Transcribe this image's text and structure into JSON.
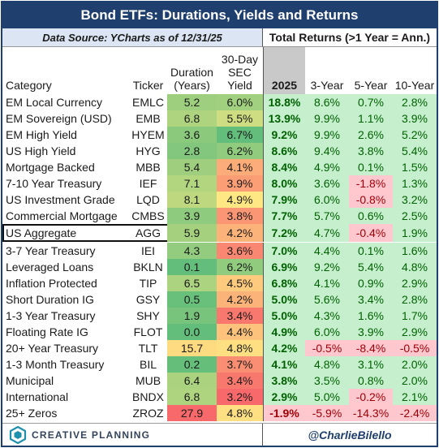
{
  "title": "Bond ETFs: Durations, Yields and Returns",
  "source_note": "Data Source: YCharts as of 12/31/25",
  "returns_header": "Total Returns (>1 Year = Ann.)",
  "columns": {
    "category": "Category",
    "ticker": "Ticker",
    "duration": "Duration (Years)",
    "yield": "30-Day SEC Yield",
    "r2025": "2025",
    "r3": "3-Year",
    "r5": "5-Year",
    "r10": "10-Year"
  },
  "rows": [
    {
      "category": "EM Local Currency",
      "ticker": "EMLC",
      "duration": "5.2",
      "yield": "6.0%",
      "r2025": "18.8%",
      "r3": "8.6%",
      "r5": "0.7%",
      "r10": "2.8%"
    },
    {
      "category": "EM Sovereign (USD)",
      "ticker": "EMB",
      "duration": "6.8",
      "yield": "5.5%",
      "r2025": "13.9%",
      "r3": "9.9%",
      "r5": "1.1%",
      "r10": "3.9%"
    },
    {
      "category": "EM High Yield",
      "ticker": "HYEM",
      "duration": "3.6",
      "yield": "6.7%",
      "r2025": "9.2%",
      "r3": "9.9%",
      "r5": "2.6%",
      "r10": "5.2%"
    },
    {
      "category": "US High Yield",
      "ticker": "HYG",
      "duration": "2.8",
      "yield": "6.2%",
      "r2025": "8.6%",
      "r3": "9.4%",
      "r5": "3.8%",
      "r10": "5.4%"
    },
    {
      "category": "Mortgage Backed",
      "ticker": "MBB",
      "duration": "5.4",
      "yield": "4.1%",
      "r2025": "8.4%",
      "r3": "4.9%",
      "r5": "0.1%",
      "r10": "1.5%"
    },
    {
      "category": "7-10 Year Treasury",
      "ticker": "IEF",
      "duration": "7.1",
      "yield": "3.9%",
      "r2025": "8.0%",
      "r3": "3.6%",
      "r5": "-1.8%",
      "r10": "1.3%"
    },
    {
      "category": "US Investment Grade",
      "ticker": "LQD",
      "duration": "8.1",
      "yield": "4.9%",
      "r2025": "7.9%",
      "r3": "6.0%",
      "r5": "-0.8%",
      "r10": "3.2%"
    },
    {
      "category": "Commercial Mortgage",
      "ticker": "CMBS",
      "duration": "3.9",
      "yield": "3.8%",
      "r2025": "7.7%",
      "r3": "5.7%",
      "r5": "0.6%",
      "r10": "2.5%"
    },
    {
      "category": "US Aggregate",
      "ticker": "AGG",
      "duration": "5.9",
      "yield": "4.2%",
      "r2025": "7.2%",
      "r3": "4.7%",
      "r5": "-0.4%",
      "r10": "1.9%"
    },
    {
      "category": "3-7 Year Treasury",
      "ticker": "IEI",
      "duration": "4.3",
      "yield": "3.6%",
      "r2025": "7.0%",
      "r3": "4.4%",
      "r5": "0.1%",
      "r10": "1.6%"
    },
    {
      "category": "Leveraged Loans",
      "ticker": "BKLN",
      "duration": "0.1",
      "yield": "6.2%",
      "r2025": "6.9%",
      "r3": "9.2%",
      "r5": "5.4%",
      "r10": "4.8%"
    },
    {
      "category": "Inflation Protected",
      "ticker": "TIP",
      "duration": "6.5",
      "yield": "4.5%",
      "r2025": "6.8%",
      "r3": "4.1%",
      "r5": "0.9%",
      "r10": "2.9%"
    },
    {
      "category": "Short Duration IG",
      "ticker": "GSY",
      "duration": "0.5",
      "yield": "4.2%",
      "r2025": "5.0%",
      "r3": "5.6%",
      "r5": "3.4%",
      "r10": "2.8%"
    },
    {
      "category": "1-3 Year Treasury",
      "ticker": "SHY",
      "duration": "1.9",
      "yield": "3.4%",
      "r2025": "5.0%",
      "r3": "4.3%",
      "r5": "1.6%",
      "r10": "1.7%"
    },
    {
      "category": "Floating Rate IG",
      "ticker": "FLOT",
      "duration": "0.0",
      "yield": "4.4%",
      "r2025": "4.9%",
      "r3": "6.0%",
      "r5": "3.9%",
      "r10": "2.9%"
    },
    {
      "category": "20+ Year Treasury",
      "ticker": "TLT",
      "duration": "15.7",
      "yield": "4.8%",
      "r2025": "4.2%",
      "r3": "-0.5%",
      "r5": "-8.4%",
      "r10": "-0.5%"
    },
    {
      "category": "1-3 Month Treasury",
      "ticker": "BIL",
      "duration": "0.2",
      "yield": "3.7%",
      "r2025": "4.1%",
      "r3": "4.8%",
      "r5": "3.1%",
      "r10": "2.0%"
    },
    {
      "category": "Municipal",
      "ticker": "MUB",
      "duration": "6.4",
      "yield": "3.4%",
      "r2025": "3.8%",
      "r3": "3.5%",
      "r5": "0.8%",
      "r10": "2.0%"
    },
    {
      "category": "International",
      "ticker": "BNDX",
      "duration": "6.8",
      "yield": "3.2%",
      "r2025": "2.9%",
      "r3": "5.0%",
      "r5": "-0.2%",
      "r10": "2.1%"
    },
    {
      "category": "25+ Zeros",
      "ticker": "ZROZ",
      "duration": "27.9",
      "yield": "4.8%",
      "r2025": "-1.9%",
      "r3": "-5.9%",
      "r5": "-14.3%",
      "r10": "-2.4%"
    }
  ],
  "footer": {
    "brand": "CREATIVE PLANNING",
    "handle": "@CharlieBilello",
    "logo_icon": "hexagon-logo-icon"
  }
}
